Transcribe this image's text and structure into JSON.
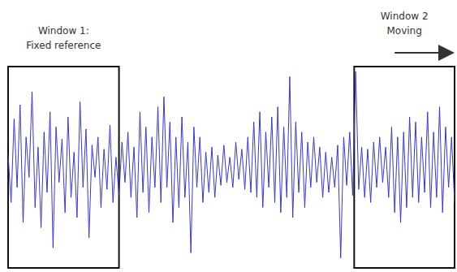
{
  "chart_data": {
    "type": "line",
    "tick_labels": false,
    "grid": false,
    "color": "#3a3ab8",
    "xlim": [
      0,
      149
    ],
    "ylim": [
      -1,
      1
    ],
    "x": [
      0,
      1,
      2,
      3,
      4,
      5,
      6,
      7,
      8,
      9,
      10,
      11,
      12,
      13,
      14,
      15,
      16,
      17,
      18,
      19,
      20,
      21,
      22,
      23,
      24,
      25,
      26,
      27,
      28,
      29,
      30,
      31,
      32,
      33,
      34,
      35,
      36,
      37,
      38,
      39,
      40,
      41,
      42,
      43,
      44,
      45,
      46,
      47,
      48,
      49,
      50,
      51,
      52,
      53,
      54,
      55,
      56,
      57,
      58,
      59,
      60,
      61,
      62,
      63,
      64,
      65,
      66,
      67,
      68,
      69,
      70,
      71,
      72,
      73,
      74,
      75,
      76,
      77,
      78,
      79,
      80,
      81,
      82,
      83,
      84,
      85,
      86,
      87,
      88,
      89,
      90,
      91,
      92,
      93,
      94,
      95,
      96,
      97,
      98,
      99,
      100,
      101,
      102,
      103,
      104,
      105,
      106,
      107,
      108,
      109,
      110,
      111,
      112,
      113,
      114,
      115,
      116,
      117,
      118,
      119,
      120,
      121,
      122,
      123,
      124,
      125,
      126,
      127,
      128,
      129,
      130,
      131,
      132,
      133,
      134,
      135,
      136,
      137,
      138,
      139,
      140,
      141,
      142,
      143,
      144,
      145,
      146,
      147,
      148,
      149
    ],
    "values": [
      0.12,
      -0.35,
      0.48,
      -0.2,
      0.62,
      -0.55,
      0.3,
      -0.1,
      0.75,
      -0.4,
      0.2,
      -0.6,
      0.35,
      -0.25,
      0.55,
      -0.8,
      0.4,
      -0.15,
      0.28,
      -0.45,
      0.5,
      -0.3,
      0.15,
      -0.5,
      0.65,
      -0.2,
      0.38,
      -0.7,
      0.22,
      -0.1,
      0.3,
      -0.4,
      0.18,
      -0.22,
      0.42,
      -0.35,
      0.1,
      -0.28,
      0.25,
      -0.15,
      0.35,
      -0.3,
      0.2,
      -0.5,
      0.55,
      -0.25,
      0.4,
      -0.45,
      0.3,
      -0.2,
      0.6,
      -0.35,
      0.7,
      -0.2,
      0.45,
      -0.55,
      0.3,
      -0.4,
      0.5,
      -0.3,
      0.25,
      -0.85,
      0.4,
      -0.2,
      0.3,
      -0.35,
      0.15,
      -0.25,
      0.2,
      -0.3,
      0.12,
      -0.18,
      0.22,
      -0.15,
      0.1,
      -0.2,
      0.25,
      -0.12,
      0.18,
      -0.22,
      0.3,
      -0.25,
      0.45,
      -0.3,
      0.55,
      -0.4,
      0.35,
      -0.2,
      0.5,
      -0.35,
      0.6,
      -0.45,
      0.4,
      -0.3,
      0.9,
      -0.5,
      0.45,
      -0.25,
      0.35,
      -0.4,
      0.25,
      -0.2,
      0.3,
      -0.15,
      0.2,
      -0.3,
      0.15,
      -0.25,
      0.1,
      -0.2,
      0.22,
      -0.9,
      0.3,
      -0.18,
      0.35,
      -0.28,
      0.95,
      -0.22,
      0.2,
      -0.3,
      0.18,
      -0.35,
      0.25,
      -0.2,
      0.3,
      -0.15,
      0.2,
      -0.3,
      0.4,
      -0.45,
      0.3,
      -0.55,
      0.35,
      -0.4,
      0.5,
      -0.3,
      0.45,
      -0.35,
      0.3,
      -0.25,
      0.55,
      -0.4,
      0.35,
      -0.3,
      0.6,
      -0.45,
      0.4,
      -0.2,
      0.3,
      -0.35
    ],
    "annotations": [
      {
        "text": [
          "Window 1:",
          "Fixed reference"
        ],
        "x": [
          0,
          37
        ]
      },
      {
        "text": [
          "Window 2",
          "Moving"
        ],
        "x": [
          115.5,
          149
        ]
      }
    ]
  }
}
